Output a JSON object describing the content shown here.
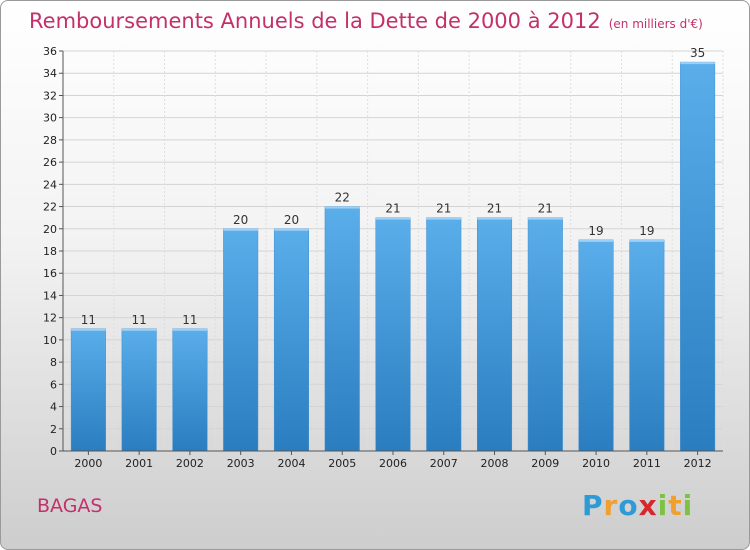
{
  "header": {
    "title": "Remboursements Annuels de la Dette de 2000 à 2012",
    "subtitle": "(en milliers d'€)"
  },
  "footer": {
    "commune": "BAGAS",
    "logo_letters": [
      "P",
      "r",
      "o",
      "x",
      "i",
      "t",
      "i"
    ]
  },
  "chart_data": {
    "type": "bar",
    "title": "Remboursements Annuels de la Dette de 2000 à 2012",
    "subtitle": "(en milliers d'€)",
    "xlabel": "",
    "ylabel": "",
    "categories": [
      "2000",
      "2001",
      "2002",
      "2003",
      "2004",
      "2005",
      "2006",
      "2007",
      "2008",
      "2009",
      "2010",
      "2011",
      "2012"
    ],
    "values": [
      11,
      11,
      11,
      20,
      20,
      22,
      21,
      21,
      21,
      21,
      19,
      19,
      35
    ],
    "ylim": [
      0,
      36
    ],
    "yticks": [
      0,
      2,
      4,
      6,
      8,
      10,
      12,
      14,
      16,
      18,
      20,
      22,
      24,
      26,
      28,
      30,
      32,
      34,
      36
    ],
    "grid": true,
    "bar_color": "#4a9fe0",
    "bar_color_light": "#5aaeea",
    "bar_color_dark": "#2a7dbf"
  }
}
